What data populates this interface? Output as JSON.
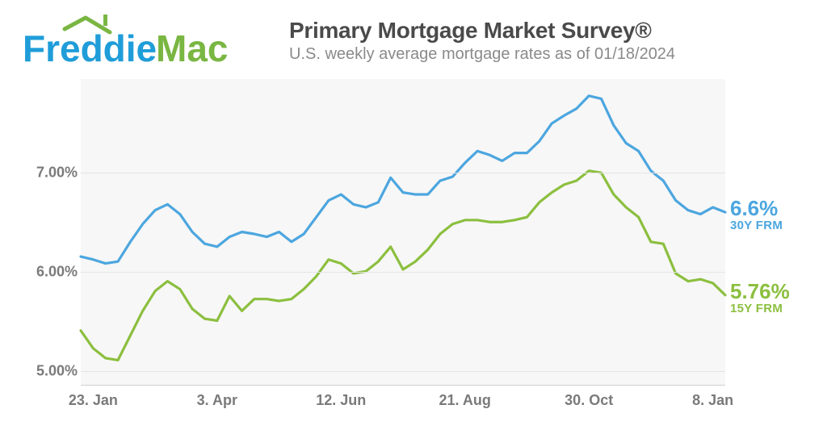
{
  "logo": {
    "text_freddie": "Freddie",
    "text_mac": "Mac",
    "color_freddie": "#1f9dd9",
    "color_mac": "#7ab642",
    "roof_color": "#7ab642"
  },
  "header": {
    "title": "Primary Mortgage Market Survey®",
    "subtitle": "U.S. weekly average mortgage rates as of 01/18/2024"
  },
  "chart": {
    "type": "line",
    "background_color": "#f7f7f7",
    "grid_color": "#e4e4e4",
    "ylim": [
      4.85,
      7.95
    ],
    "y_ticks": [
      5.0,
      6.0,
      7.0
    ],
    "y_tick_labels": [
      "5.00%",
      "6.00%",
      "7.00%"
    ],
    "x_tick_positions": [
      1,
      11,
      21,
      31,
      41,
      51
    ],
    "x_tick_labels": [
      "23. Jan",
      "3. Apr",
      "12. Jun",
      "21. Aug",
      "30. Oct",
      "8. Jan"
    ],
    "n_points": 53,
    "series": [
      {
        "id": "30y",
        "name": "30Y FRM",
        "color": "#4ca6df",
        "stroke_width": 3.2,
        "end_value_label": "6.6%",
        "values": [
          6.15,
          6.12,
          6.08,
          6.1,
          6.3,
          6.48,
          6.62,
          6.68,
          6.58,
          6.4,
          6.28,
          6.25,
          6.35,
          6.4,
          6.38,
          6.35,
          6.4,
          6.3,
          6.38,
          6.55,
          6.72,
          6.78,
          6.68,
          6.65,
          6.7,
          6.95,
          6.8,
          6.78,
          6.78,
          6.92,
          6.96,
          7.1,
          7.22,
          7.18,
          7.12,
          7.2,
          7.2,
          7.32,
          7.5,
          7.58,
          7.65,
          7.78,
          7.75,
          7.48,
          7.3,
          7.22,
          7.02,
          6.92,
          6.72,
          6.62,
          6.58,
          6.65,
          6.6
        ]
      },
      {
        "id": "15y",
        "name": "15Y FRM",
        "color": "#8cbf3f",
        "stroke_width": 3.2,
        "end_value_label": "5.76%",
        "values": [
          5.4,
          5.22,
          5.12,
          5.1,
          5.35,
          5.6,
          5.8,
          5.9,
          5.82,
          5.62,
          5.52,
          5.5,
          5.75,
          5.6,
          5.72,
          5.72,
          5.7,
          5.72,
          5.82,
          5.95,
          6.12,
          6.08,
          5.98,
          6.0,
          6.1,
          6.25,
          6.02,
          6.1,
          6.22,
          6.38,
          6.48,
          6.52,
          6.52,
          6.5,
          6.5,
          6.52,
          6.55,
          6.7,
          6.8,
          6.88,
          6.92,
          7.02,
          7.0,
          6.78,
          6.65,
          6.55,
          6.3,
          6.28,
          5.98,
          5.9,
          5.92,
          5.88,
          5.76
        ]
      }
    ]
  },
  "colors": {
    "title": "#4a4a4a",
    "subtitle": "#8a8a8a",
    "axis_label": "#7a7a7a"
  }
}
